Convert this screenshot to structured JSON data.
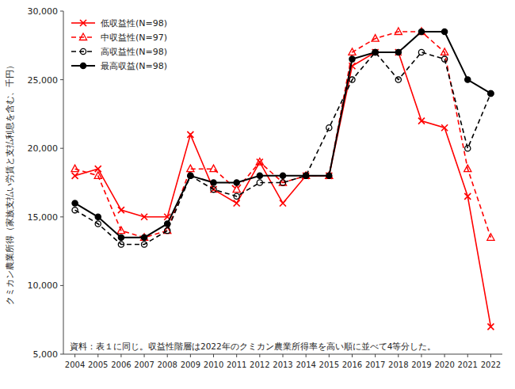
{
  "chart_data": {
    "type": "line",
    "y_label": "クミカン農業所得（家族支払い労賃と支払利息を含む、千円）",
    "annotations": [
      "資料：表１に同じ。収益性階層は2022年のクミカン農業所得率を高い順に並べて4等分した。"
    ],
    "x": [
      2004,
      2005,
      2006,
      2007,
      2008,
      2009,
      2010,
      2011,
      2012,
      2013,
      2014,
      2015,
      2016,
      2017,
      2018,
      2019,
      2020,
      2021,
      2022
    ],
    "series": [
      {
        "name": "低収益性(N=98)",
        "color": "red",
        "line_style": "solid",
        "marker": "x",
        "values": [
          18000,
          18500,
          15500,
          15000,
          15000,
          21000,
          17000,
          16000,
          19000,
          16000,
          18000,
          18000,
          26000,
          27000,
          27000,
          22000,
          21500,
          16500,
          7000
        ]
      },
      {
        "name": "中収益性(N=97)",
        "color": "red",
        "line_style": "dashed",
        "marker": "triangle-open",
        "values": [
          18500,
          18000,
          14000,
          13500,
          14000,
          18500,
          18500,
          17000,
          19000,
          17500,
          18000,
          18000,
          27000,
          28000,
          28500,
          28500,
          27000,
          18500,
          13500
        ]
      },
      {
        "name": "高収益性(N=98)",
        "color": "black",
        "line_style": "dashed",
        "marker": "circle-open",
        "values": [
          15500,
          14500,
          13000,
          13000,
          14000,
          18000,
          17000,
          16500,
          17500,
          17500,
          18000,
          21500,
          25000,
          27000,
          25000,
          27000,
          26500,
          20000,
          24000
        ]
      },
      {
        "name": "最高収益(N=98)",
        "color": "black",
        "line_style": "solid",
        "marker": "circle",
        "values": [
          16000,
          15000,
          13500,
          13500,
          14500,
          18000,
          17500,
          17500,
          18000,
          18000,
          18000,
          18000,
          26500,
          27000,
          27000,
          28500,
          28500,
          25000,
          24000
        ]
      }
    ],
    "xlim": [
      2003.5,
      2022.5
    ],
    "xticks": [
      2004,
      2005,
      2006,
      2007,
      2008,
      2009,
      2010,
      2011,
      2012,
      2013,
      2014,
      2015,
      2016,
      2017,
      2018,
      2019,
      2020,
      2021,
      2022
    ],
    "ylim": [
      5000,
      30000
    ],
    "yticks": [
      {
        "value": 5000,
        "label": "5,000"
      },
      {
        "value": 10000,
        "label": "10,000"
      },
      {
        "value": 15000,
        "label": "15,000"
      },
      {
        "value": 20000,
        "label": "20,000"
      },
      {
        "value": 25000,
        "label": "25,000"
      },
      {
        "value": 30000,
        "label": "30,000"
      }
    ],
    "grid": false,
    "legend": "upper left"
  }
}
